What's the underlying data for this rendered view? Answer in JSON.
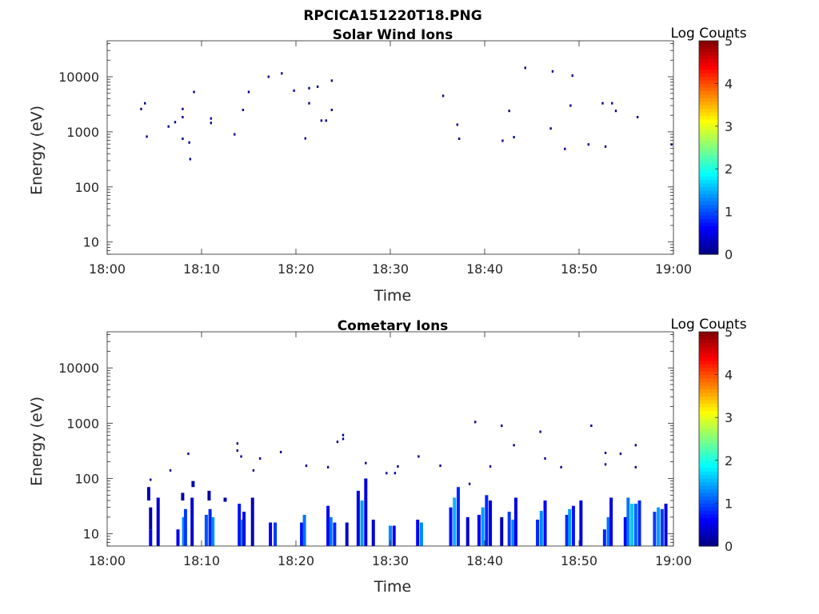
{
  "figure_title": "RPCICA151220T18.PNG",
  "chart_data": [
    {
      "type": "heatmap",
      "title": "Solar Wind Ions",
      "xlabel": "Time",
      "ylabel": "Energy (eV)",
      "y_scale": "log",
      "ylim": [
        6,
        45000
      ],
      "xlim": [
        "18:00",
        "19:00"
      ],
      "x_ticks": [
        "18:00",
        "18:10",
        "18:20",
        "18:30",
        "18:40",
        "18:50",
        "19:00"
      ],
      "y_ticks": [
        "10",
        "100",
        "1000",
        "10000"
      ],
      "colorbar": {
        "title": "Log Counts",
        "range": [
          0,
          5
        ],
        "ticks": [
          "0",
          "1",
          "2",
          "3",
          "4",
          "5"
        ],
        "colormap": "jet"
      },
      "cells": [
        {
          "t": 3.6,
          "e": 2600,
          "v": 0.1
        },
        {
          "t": 4.0,
          "e": 3300,
          "v": 0.1
        },
        {
          "t": 4.2,
          "e": 820,
          "v": 0.1
        },
        {
          "t": 6.5,
          "e": 1250,
          "v": 0.1
        },
        {
          "t": 7.2,
          "e": 1500,
          "v": 0.1
        },
        {
          "t": 8.0,
          "e": 2600,
          "v": 0.1
        },
        {
          "t": 8.0,
          "e": 1850,
          "v": 0.1
        },
        {
          "t": 8.0,
          "e": 750,
          "v": 0.1
        },
        {
          "t": 8.7,
          "e": 640,
          "v": 0.1
        },
        {
          "t": 8.8,
          "e": 320,
          "v": 0.1
        },
        {
          "t": 9.2,
          "e": 5300,
          "v": 0.1
        },
        {
          "t": 11.0,
          "e": 1750,
          "v": 0.2
        },
        {
          "t": 11.0,
          "e": 1450,
          "v": 0.2
        },
        {
          "t": 13.5,
          "e": 900,
          "v": 0.1
        },
        {
          "t": 14.4,
          "e": 2500,
          "v": 0.1
        },
        {
          "t": 15.0,
          "e": 5300,
          "v": 0.1
        },
        {
          "t": 17.1,
          "e": 10000,
          "v": 0.1
        },
        {
          "t": 18.5,
          "e": 11500,
          "v": 0.1
        },
        {
          "t": 19.8,
          "e": 5600,
          "v": 0.2
        },
        {
          "t": 21.0,
          "e": 760,
          "v": 0.1
        },
        {
          "t": 21.4,
          "e": 3300,
          "v": 0.1
        },
        {
          "t": 21.4,
          "e": 6200,
          "v": 0.1
        },
        {
          "t": 22.3,
          "e": 6600,
          "v": 0.1
        },
        {
          "t": 22.7,
          "e": 1600,
          "v": 0.1
        },
        {
          "t": 23.2,
          "e": 1600,
          "v": 0.1
        },
        {
          "t": 23.8,
          "e": 8500,
          "v": 0.1
        },
        {
          "t": 23.8,
          "e": 2500,
          "v": 0.1
        },
        {
          "t": 35.6,
          "e": 4500,
          "v": 0.1
        },
        {
          "t": 37.1,
          "e": 1350,
          "v": 0.1
        },
        {
          "t": 37.3,
          "e": 750,
          "v": 0.1
        },
        {
          "t": 41.9,
          "e": 690,
          "v": 0.1
        },
        {
          "t": 42.6,
          "e": 2400,
          "v": 0.1
        },
        {
          "t": 43.1,
          "e": 800,
          "v": 0.1
        },
        {
          "t": 44.3,
          "e": 14500,
          "v": 0.1
        },
        {
          "t": 47.0,
          "e": 1150,
          "v": 0.1
        },
        {
          "t": 47.2,
          "e": 12500,
          "v": 0.1
        },
        {
          "t": 48.5,
          "e": 490,
          "v": 0.1
        },
        {
          "t": 49.1,
          "e": 3000,
          "v": 0.1
        },
        {
          "t": 49.3,
          "e": 10500,
          "v": 0.1
        },
        {
          "t": 51.0,
          "e": 590,
          "v": 0.1
        },
        {
          "t": 52.5,
          "e": 3300,
          "v": 0.1
        },
        {
          "t": 52.8,
          "e": 540,
          "v": 0.1
        },
        {
          "t": 53.5,
          "e": 3300,
          "v": 0.1
        },
        {
          "t": 53.9,
          "e": 2400,
          "v": 0.1
        },
        {
          "t": 56.2,
          "e": 1850,
          "v": 0.1
        },
        {
          "t": 59.8,
          "e": 590,
          "v": 0.1
        }
      ]
    },
    {
      "type": "heatmap",
      "title": "Cometary Ions",
      "xlabel": "Time",
      "ylabel": "Energy (eV)",
      "y_scale": "log",
      "ylim": [
        6,
        45000
      ],
      "xlim": [
        "18:00",
        "19:00"
      ],
      "x_ticks": [
        "18:00",
        "18:10",
        "18:20",
        "18:30",
        "18:40",
        "18:50",
        "19:00"
      ],
      "y_ticks": [
        "10",
        "100",
        "1000",
        "10000"
      ],
      "colorbar": {
        "title": "Log Counts",
        "range": [
          0,
          5
        ],
        "ticks": [
          "0",
          "1",
          "2",
          "3",
          "4",
          "5"
        ],
        "colormap": "jet"
      },
      "columns": [
        {
          "t": 4.6,
          "emin": 6,
          "emax": 12,
          "v": 0.6
        },
        {
          "t": 4.6,
          "emin": 12,
          "emax": 30,
          "v": 0.2
        },
        {
          "t": 4.4,
          "emin": 40,
          "emax": 70,
          "v": 0.3
        },
        {
          "t": 5.4,
          "emin": 6,
          "emax": 45,
          "v": 0.4
        },
        {
          "t": 7.5,
          "emin": 6,
          "emax": 12,
          "v": 0.6
        },
        {
          "t": 8.1,
          "emin": 6,
          "emax": 20,
          "v": 1.3
        },
        {
          "t": 8.3,
          "emin": 6,
          "emax": 28,
          "v": 0.9
        },
        {
          "t": 8.0,
          "emin": 40,
          "emax": 55,
          "v": 0.2
        },
        {
          "t": 9.0,
          "emin": 6,
          "emax": 45,
          "v": 0.4
        },
        {
          "t": 9.1,
          "emin": 70,
          "emax": 90,
          "v": 0.2
        },
        {
          "t": 10.5,
          "emin": 6,
          "emax": 22,
          "v": 1.0
        },
        {
          "t": 10.9,
          "emin": 6,
          "emax": 28,
          "v": 0.8
        },
        {
          "t": 11.2,
          "emin": 6,
          "emax": 20,
          "v": 1.3
        },
        {
          "t": 10.8,
          "emin": 40,
          "emax": 60,
          "v": 0.2
        },
        {
          "t": 12.5,
          "emin": 38,
          "emax": 45,
          "v": 0.2
        },
        {
          "t": 14.0,
          "emin": 6,
          "emax": 35,
          "v": 0.7
        },
        {
          "t": 14.3,
          "emin": 6,
          "emax": 18,
          "v": 1.3
        },
        {
          "t": 14.5,
          "emin": 6,
          "emax": 25,
          "v": 0.5
        },
        {
          "t": 15.4,
          "emin": 6,
          "emax": 45,
          "v": 0.3
        },
        {
          "t": 17.3,
          "emin": 6,
          "emax": 16,
          "v": 0.5
        },
        {
          "t": 17.8,
          "emin": 6,
          "emax": 16,
          "v": 0.9
        },
        {
          "t": 20.6,
          "emin": 6,
          "emax": 16,
          "v": 0.7
        },
        {
          "t": 20.9,
          "emin": 6,
          "emax": 22,
          "v": 1.2
        },
        {
          "t": 23.4,
          "emin": 6,
          "emax": 32,
          "v": 0.6
        },
        {
          "t": 23.7,
          "emin": 6,
          "emax": 20,
          "v": 1.2
        },
        {
          "t": 24.1,
          "emin": 6,
          "emax": 16,
          "v": 0.8
        },
        {
          "t": 25.4,
          "emin": 6,
          "emax": 16,
          "v": 0.4
        },
        {
          "t": 26.6,
          "emin": 6,
          "emax": 60,
          "v": 0.5
        },
        {
          "t": 27.0,
          "emin": 6,
          "emax": 40,
          "v": 1.4
        },
        {
          "t": 27.4,
          "emin": 6,
          "emax": 100,
          "v": 0.5
        },
        {
          "t": 28.2,
          "emin": 6,
          "emax": 18,
          "v": 0.4
        },
        {
          "t": 30.0,
          "emin": 6,
          "emax": 14,
          "v": 1.3
        },
        {
          "t": 30.4,
          "emin": 6,
          "emax": 14,
          "v": 0.6
        },
        {
          "t": 32.9,
          "emin": 6,
          "emax": 18,
          "v": 0.6
        },
        {
          "t": 33.3,
          "emin": 6,
          "emax": 16,
          "v": 1.3
        },
        {
          "t": 36.4,
          "emin": 6,
          "emax": 30,
          "v": 0.7
        },
        {
          "t": 36.8,
          "emin": 6,
          "emax": 45,
          "v": 1.5
        },
        {
          "t": 37.2,
          "emin": 6,
          "emax": 70,
          "v": 0.8
        },
        {
          "t": 38.2,
          "emin": 6,
          "emax": 20,
          "v": 0.4
        },
        {
          "t": 39.4,
          "emin": 6,
          "emax": 22,
          "v": 0.6
        },
        {
          "t": 39.8,
          "emin": 6,
          "emax": 30,
          "v": 1.4
        },
        {
          "t": 40.2,
          "emin": 6,
          "emax": 50,
          "v": 0.8
        },
        {
          "t": 40.6,
          "emin": 6,
          "emax": 40,
          "v": 0.5
        },
        {
          "t": 41.8,
          "emin": 6,
          "emax": 20,
          "v": 0.3
        },
        {
          "t": 42.6,
          "emin": 6,
          "emax": 25,
          "v": 0.9
        },
        {
          "t": 43.0,
          "emin": 6,
          "emax": 18,
          "v": 1.3
        },
        {
          "t": 43.3,
          "emin": 6,
          "emax": 45,
          "v": 0.5
        },
        {
          "t": 45.6,
          "emin": 6,
          "emax": 18,
          "v": 0.8
        },
        {
          "t": 46.0,
          "emin": 6,
          "emax": 26,
          "v": 1.3
        },
        {
          "t": 46.4,
          "emin": 6,
          "emax": 40,
          "v": 0.6
        },
        {
          "t": 48.7,
          "emin": 6,
          "emax": 22,
          "v": 0.8
        },
        {
          "t": 49.0,
          "emin": 6,
          "emax": 28,
          "v": 1.4
        },
        {
          "t": 49.4,
          "emin": 6,
          "emax": 32,
          "v": 0.7
        },
        {
          "t": 50.2,
          "emin": 6,
          "emax": 40,
          "v": 0.5
        },
        {
          "t": 52.7,
          "emin": 6,
          "emax": 12,
          "v": 0.8
        },
        {
          "t": 53.1,
          "emin": 6,
          "emax": 20,
          "v": 1.2
        },
        {
          "t": 53.4,
          "emin": 6,
          "emax": 45,
          "v": 0.5
        },
        {
          "t": 54.9,
          "emin": 6,
          "emax": 20,
          "v": 0.6
        },
        {
          "t": 55.2,
          "emin": 6,
          "emax": 45,
          "v": 1.2
        },
        {
          "t": 55.6,
          "emin": 6,
          "emax": 35,
          "v": 1.6
        },
        {
          "t": 56.0,
          "emin": 6,
          "emax": 35,
          "v": 1.1
        },
        {
          "t": 56.4,
          "emin": 6,
          "emax": 40,
          "v": 0.8
        },
        {
          "t": 58.0,
          "emin": 6,
          "emax": 25,
          "v": 0.9
        },
        {
          "t": 58.4,
          "emin": 6,
          "emax": 30,
          "v": 1.4
        },
        {
          "t": 58.8,
          "emin": 6,
          "emax": 28,
          "v": 0.9
        },
        {
          "t": 59.2,
          "emin": 6,
          "emax": 35,
          "v": 0.5
        }
      ],
      "cells": [
        {
          "t": 4.6,
          "e": 95,
          "v": 0.2
        },
        {
          "t": 6.7,
          "e": 140,
          "v": 0.1
        },
        {
          "t": 8.6,
          "e": 280,
          "v": 0.1
        },
        {
          "t": 13.8,
          "e": 430,
          "v": 0.1
        },
        {
          "t": 13.8,
          "e": 320,
          "v": 0.1
        },
        {
          "t": 14.2,
          "e": 250,
          "v": 0.1
        },
        {
          "t": 16.2,
          "e": 230,
          "v": 0.1
        },
        {
          "t": 15.5,
          "e": 140,
          "v": 0.1
        },
        {
          "t": 18.4,
          "e": 300,
          "v": 0.1
        },
        {
          "t": 21.1,
          "e": 170,
          "v": 0.1
        },
        {
          "t": 23.4,
          "e": 160,
          "v": 0.1
        },
        {
          "t": 25.0,
          "e": 610,
          "v": 0.1
        },
        {
          "t": 25.0,
          "e": 520,
          "v": 0.2
        },
        {
          "t": 24.4,
          "e": 460,
          "v": 0.1
        },
        {
          "t": 27.4,
          "e": 190,
          "v": 0.1
        },
        {
          "t": 29.6,
          "e": 125,
          "v": 0.1
        },
        {
          "t": 30.5,
          "e": 125,
          "v": 0.1
        },
        {
          "t": 30.8,
          "e": 165,
          "v": 0.1
        },
        {
          "t": 33.0,
          "e": 250,
          "v": 0.1
        },
        {
          "t": 35.3,
          "e": 170,
          "v": 0.1
        },
        {
          "t": 39.0,
          "e": 1050,
          "v": 0.1
        },
        {
          "t": 38.4,
          "e": 80,
          "v": 0.1
        },
        {
          "t": 41.8,
          "e": 900,
          "v": 0.1
        },
        {
          "t": 40.6,
          "e": 165,
          "v": 0.1
        },
        {
          "t": 43.1,
          "e": 400,
          "v": 0.1
        },
        {
          "t": 45.9,
          "e": 700,
          "v": 0.1
        },
        {
          "t": 46.4,
          "e": 230,
          "v": 0.1
        },
        {
          "t": 48.1,
          "e": 160,
          "v": 0.1
        },
        {
          "t": 51.3,
          "e": 900,
          "v": 0.1
        },
        {
          "t": 52.8,
          "e": 290,
          "v": 0.1
        },
        {
          "t": 52.8,
          "e": 180,
          "v": 0.2
        },
        {
          "t": 54.4,
          "e": 280,
          "v": 0.1
        },
        {
          "t": 56.0,
          "e": 400,
          "v": 0.1
        },
        {
          "t": 56.0,
          "e": 160,
          "v": 0.1
        }
      ]
    }
  ]
}
